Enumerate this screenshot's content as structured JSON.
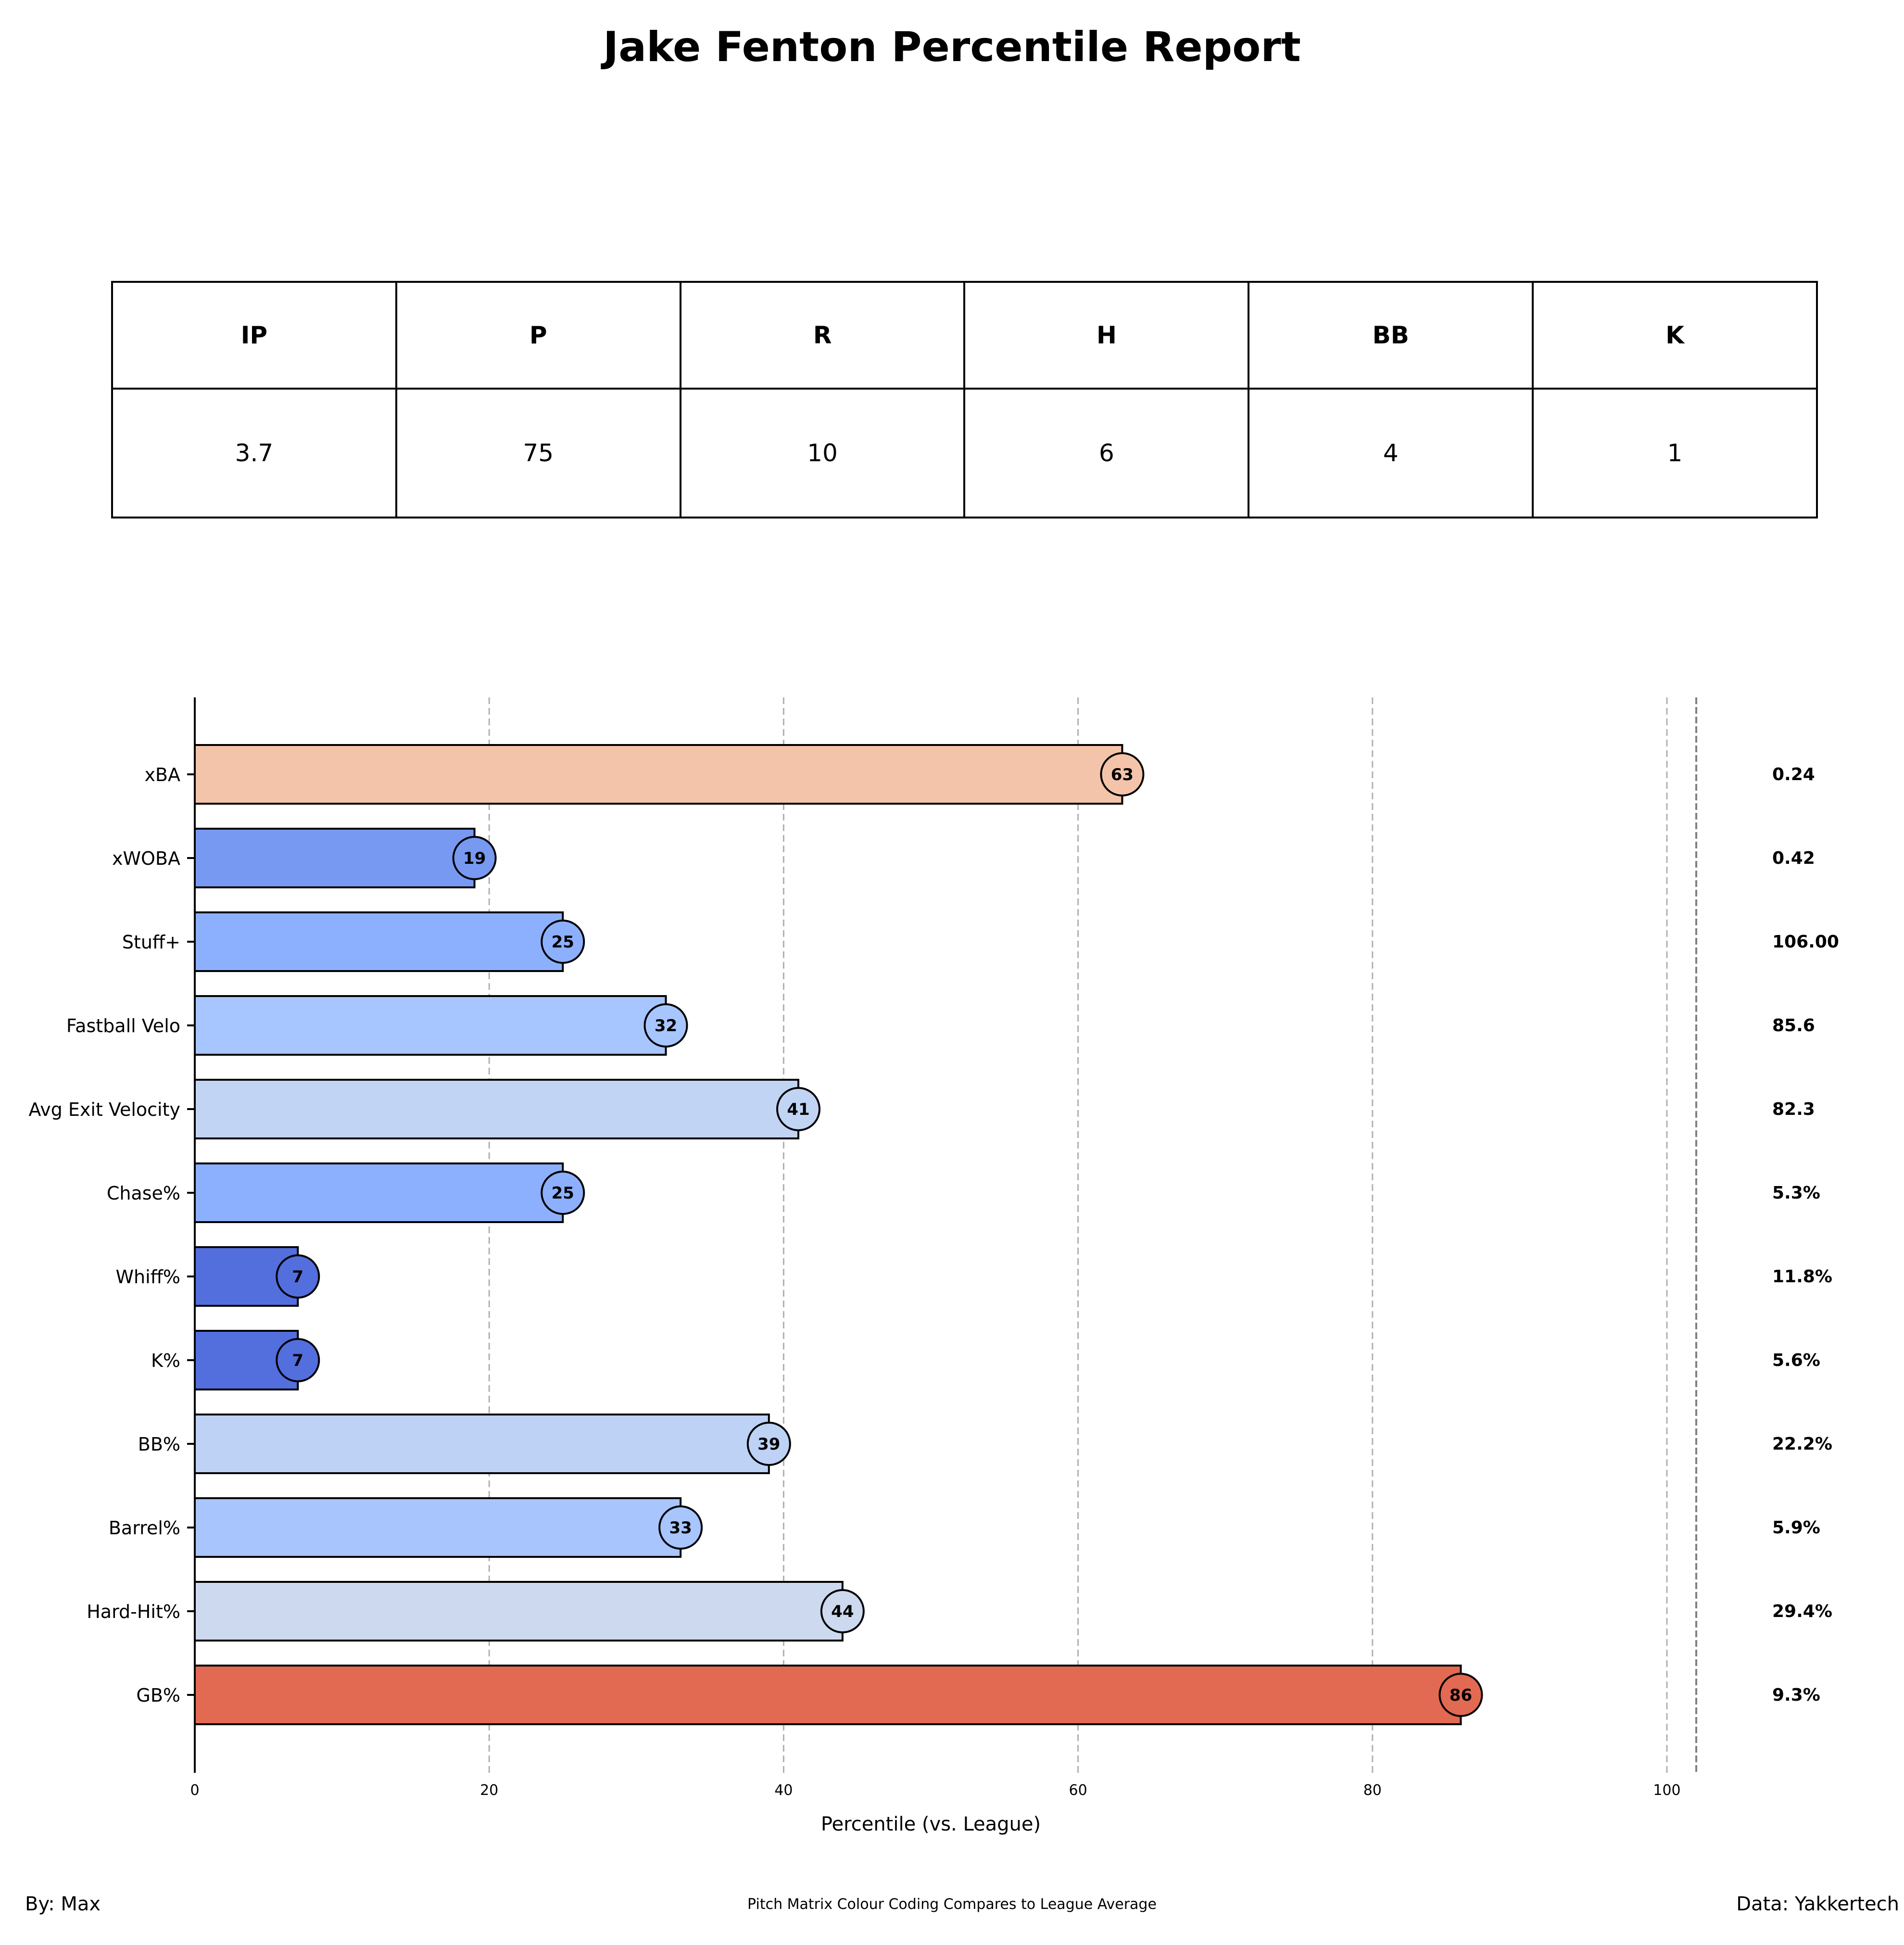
{
  "title": "Jake Fenton Percentile Report",
  "stats": {
    "headers": [
      "IP",
      "P",
      "R",
      "H",
      "BB",
      "K"
    ],
    "values": [
      "3.7",
      "75",
      "10",
      "6",
      "4",
      "1"
    ]
  },
  "chart_data": {
    "type": "bar",
    "orientation": "horizontal",
    "xlabel": "Percentile (vs. League)",
    "ylabel": "",
    "xlim": [
      0,
      100
    ],
    "xticks": [
      "0",
      "20",
      "40",
      "60",
      "80",
      "100"
    ],
    "grid": "vertical dashed",
    "categories": [
      "xBA",
      "xWOBA",
      "Stuff+",
      "Fastball Velo",
      "Avg Exit Velocity",
      "Chase%",
      "Whiff%",
      "K%",
      "BB%",
      "Barrel%",
      "Hard-Hit%",
      "GB%"
    ],
    "values": [
      63,
      19,
      25,
      32,
      41,
      25,
      7,
      7,
      39,
      33,
      44,
      86
    ],
    "labels": [
      "63",
      "19",
      "25",
      "32",
      "41",
      "25",
      "7",
      "7",
      "39",
      "33",
      "44",
      "86"
    ],
    "raw_values": [
      "0.24",
      "0.42",
      "106.00",
      "85.6",
      "82.3",
      "5.3%",
      "11.8%",
      "5.6%",
      "22.2%",
      "5.9%",
      "29.4%",
      "9.3%"
    ],
    "colors": [
      "#f4c4aa",
      "#7799f2",
      "#8db0fe",
      "#a7c5fe",
      "#c2d4f4",
      "#8db0fe",
      "#536edd",
      "#536edd",
      "#bed2f6",
      "#a8c5fe",
      "#ccd9ee",
      "#e26952"
    ]
  },
  "footer": {
    "left": "By: Max",
    "center": "Pitch Matrix Colour Coding Compares to League Average",
    "right": "Data: Yakkertech"
  }
}
